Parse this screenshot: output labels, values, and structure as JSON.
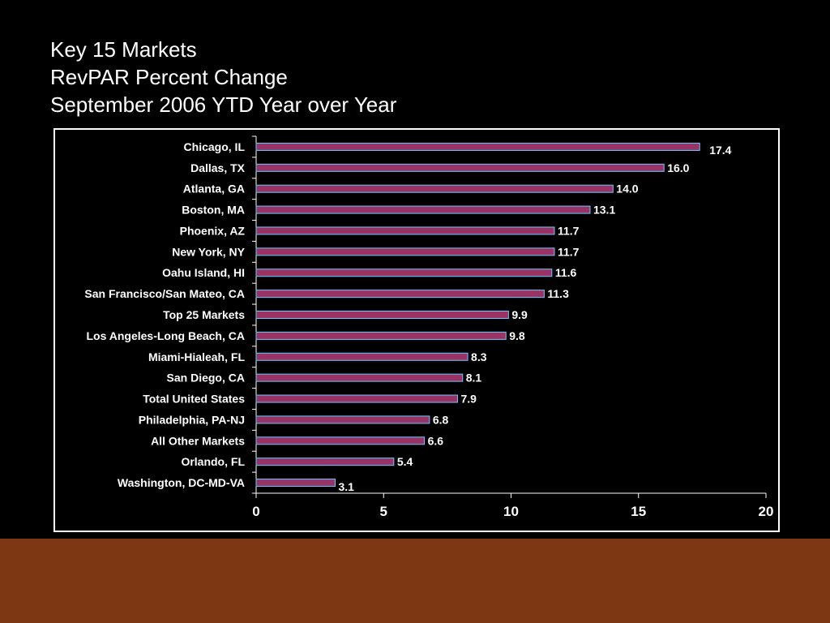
{
  "slide": {
    "title_lines": [
      "Key 15 Markets",
      "RevPAR Percent Change",
      "September 2006 YTD Year over Year"
    ]
  },
  "colors": {
    "background": "#000000",
    "bar_fill": "#993366",
    "bar_edge": "#66ccff",
    "footer": "#7d3712",
    "text": "#ffffff"
  },
  "chart_data": {
    "type": "bar",
    "orientation": "horizontal",
    "title": "Key 15 Markets RevPAR Percent Change September 2006 YTD Year over Year",
    "xlabel": "",
    "ylabel": "",
    "categories": [
      "Chicago, IL",
      "Dallas, TX",
      "Atlanta, GA",
      "Boston, MA",
      "Phoenix, AZ",
      "New York, NY",
      "Oahu Island, HI",
      "San Francisco/San Mateo, CA",
      "Top 25 Markets",
      "Los Angeles-Long Beach, CA",
      "Miami-Hialeah, FL",
      "San Diego, CA",
      "Total United States",
      "Philadelphia, PA-NJ",
      "All Other Markets",
      "Orlando, FL",
      "Washington, DC-MD-VA"
    ],
    "values": [
      17.4,
      16.0,
      14.0,
      13.1,
      11.7,
      11.7,
      11.6,
      11.3,
      9.9,
      9.8,
      8.3,
      8.1,
      7.9,
      6.8,
      6.6,
      5.4,
      3.1
    ],
    "value_labels": [
      "17.4",
      "16.0",
      "14.0",
      "13.1",
      "11.7",
      "11.7",
      "11.6",
      "11.3",
      "9.9",
      "9.8",
      "8.3",
      "8.1",
      "7.9",
      "6.8",
      "6.6",
      "5.4",
      "3.1"
    ],
    "xlim": [
      0,
      20
    ],
    "xticks": [
      0,
      5,
      10,
      15,
      20
    ],
    "xtick_labels": [
      "0",
      "5",
      "10",
      "15",
      "20"
    ],
    "grid": false,
    "legend": "none"
  }
}
